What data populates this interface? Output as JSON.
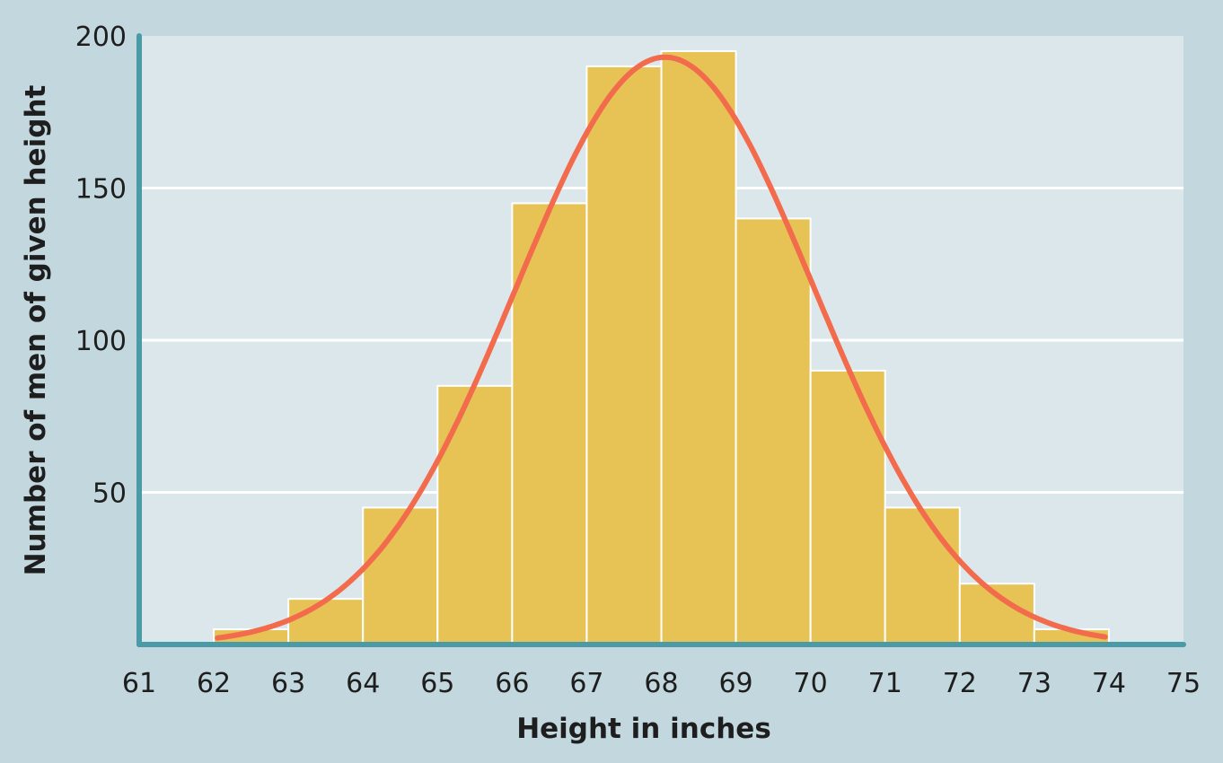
{
  "chart_data": {
    "type": "bar",
    "subtype": "histogram",
    "title": "",
    "xlabel": "Height in inches",
    "ylabel": "Number of men of given height",
    "xlim": [
      61,
      75
    ],
    "ylim": [
      0,
      200
    ],
    "x_ticks": [
      "61",
      "62",
      "63",
      "64",
      "65",
      "66",
      "67",
      "68",
      "69",
      "70",
      "71",
      "72",
      "73",
      "74",
      "75"
    ],
    "y_ticks": [
      "50",
      "100",
      "150",
      "200"
    ],
    "bins": [
      {
        "from": 62,
        "to": 63,
        "value": 5
      },
      {
        "from": 63,
        "to": 64,
        "value": 15
      },
      {
        "from": 64,
        "to": 65,
        "value": 45
      },
      {
        "from": 65,
        "to": 66,
        "value": 85
      },
      {
        "from": 66,
        "to": 67,
        "value": 145
      },
      {
        "from": 67,
        "to": 68,
        "value": 190
      },
      {
        "from": 68,
        "to": 69,
        "value": 195
      },
      {
        "from": 69,
        "to": 70,
        "value": 140
      },
      {
        "from": 70,
        "to": 71,
        "value": 90
      },
      {
        "from": 71,
        "to": 72,
        "value": 45
      },
      {
        "from": 72,
        "to": 73,
        "value": 20
      },
      {
        "from": 73,
        "to": 74,
        "value": 5
      }
    ],
    "curve": {
      "type": "normal",
      "mean": 68.05,
      "sd": 2.0,
      "peak": 193,
      "x_range": [
        62.05,
        73.95
      ]
    },
    "grid": "horizontal",
    "legend": "none",
    "colors": {
      "background": "#c2d8de",
      "plot_area": "#dce7eb",
      "bar_fill": "#e7c255",
      "bar_stroke": "#ffffff",
      "curve": "#f26b4c",
      "axis": "#4a9aa8",
      "gridline": "#ffffff"
    }
  }
}
